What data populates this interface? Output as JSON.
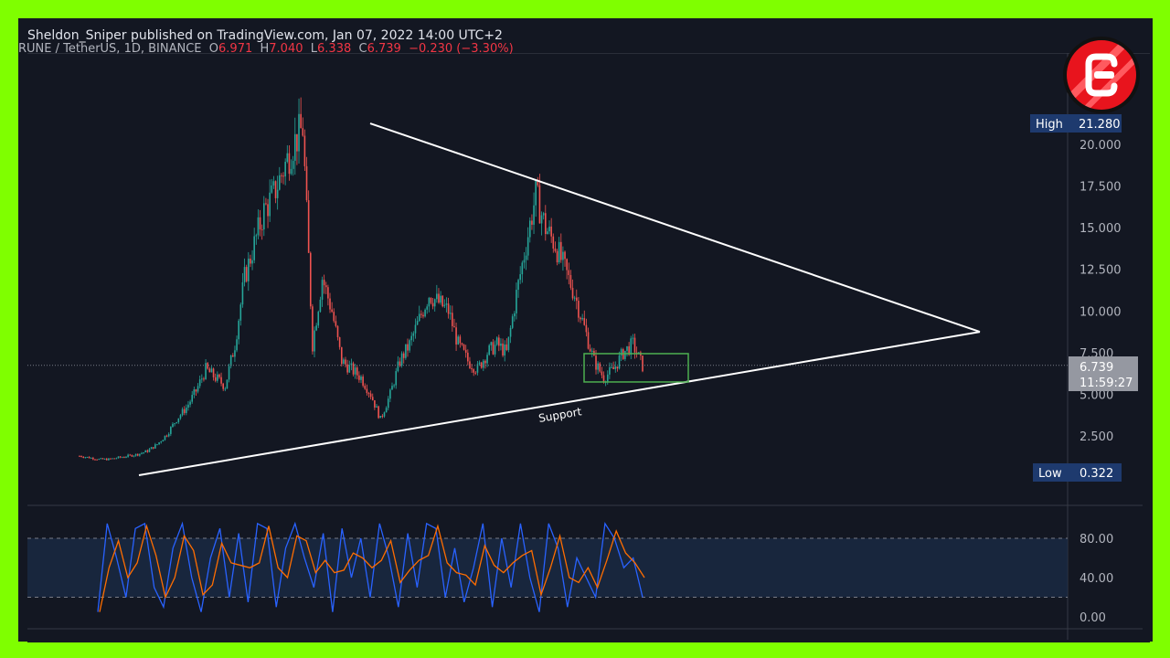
{
  "header": {
    "published": "Sheldon_Sniper published on TradingView.com, Jan 07, 2022 14:00 UTC+2"
  },
  "legend": {
    "symbol": "RUNE / TetherUS, 1D, BINANCE",
    "o_label": "O",
    "o": "6.971",
    "h_label": "H",
    "h": "7.040",
    "l_label": "L",
    "l": "6.338",
    "c_label": "C",
    "c": "6.739",
    "change": "−0.230 (−3.30%)"
  },
  "colors": {
    "up": "#26a69a",
    "down": "#ef5350",
    "lines": "#ffffff",
    "box": "#4caf50",
    "stoch_k": "#2962ff",
    "stoch_d": "#ff6d00",
    "frame": "#7fff00"
  },
  "logo": {
    "icon": "c-logo-icon"
  },
  "chart_data": {
    "type": "candlestick",
    "price_axis": {
      "ticks": [
        "2.500",
        "5.000",
        "7.500",
        "10.000",
        "12.500",
        "15.000",
        "17.500",
        "20.000"
      ],
      "tick_values": [
        2.5,
        5,
        7.5,
        10,
        12.5,
        15,
        17.5,
        20
      ]
    },
    "high_label": "High",
    "high": "21.280",
    "low_label": "Low",
    "low": "0.322",
    "last_price": "6.739",
    "countdown": "11:59:27",
    "approx_closes": [
      1.3,
      1.2,
      1.1,
      1.1,
      1.2,
      1.3,
      1.4,
      1.6,
      2.0,
      2.6,
      3.5,
      4.2,
      5.2,
      6.5,
      6.0,
      5.5,
      8,
      12,
      14,
      16,
      17,
      18.5,
      20,
      21,
      8,
      12,
      10,
      7,
      6.5,
      6,
      5,
      3.5,
      5,
      7,
      8,
      9.5,
      11,
      10.5,
      10,
      8,
      7,
      6.5,
      7.5,
      8,
      7.5,
      11,
      14,
      17,
      15,
      14,
      12.5,
      11,
      9,
      7,
      6,
      6.5,
      7.5,
      8,
      6.7
    ],
    "trendlines": [
      {
        "label": "",
        "from": [
          0.4,
          21.26
        ],
        "to": [
          1.0,
          8.75
        ]
      },
      {
        "label": "Support",
        "from": [
          0.0,
          0.14
        ],
        "to": [
          1.0,
          8.75
        ]
      }
    ],
    "range_box": {
      "top": 7.44,
      "bottom": 5.74
    },
    "oscillator": {
      "ticks": [
        "0.00",
        "40.00",
        "80.00"
      ],
      "tick_values": [
        0,
        40,
        80
      ],
      "band": [
        20,
        80
      ],
      "k": [
        5,
        95,
        60,
        20,
        90,
        95,
        30,
        10,
        70,
        95,
        40,
        5,
        60,
        90,
        20,
        85,
        15,
        95,
        90,
        10,
        70,
        95,
        60,
        30,
        85,
        5,
        90,
        40,
        80,
        20,
        95,
        60,
        10,
        85,
        30,
        95,
        90,
        20,
        70,
        15,
        50,
        95,
        10,
        80,
        30,
        95,
        40,
        5,
        95,
        70,
        10,
        60,
        40,
        20,
        95,
        80,
        50,
        60,
        20
      ]
    }
  }
}
